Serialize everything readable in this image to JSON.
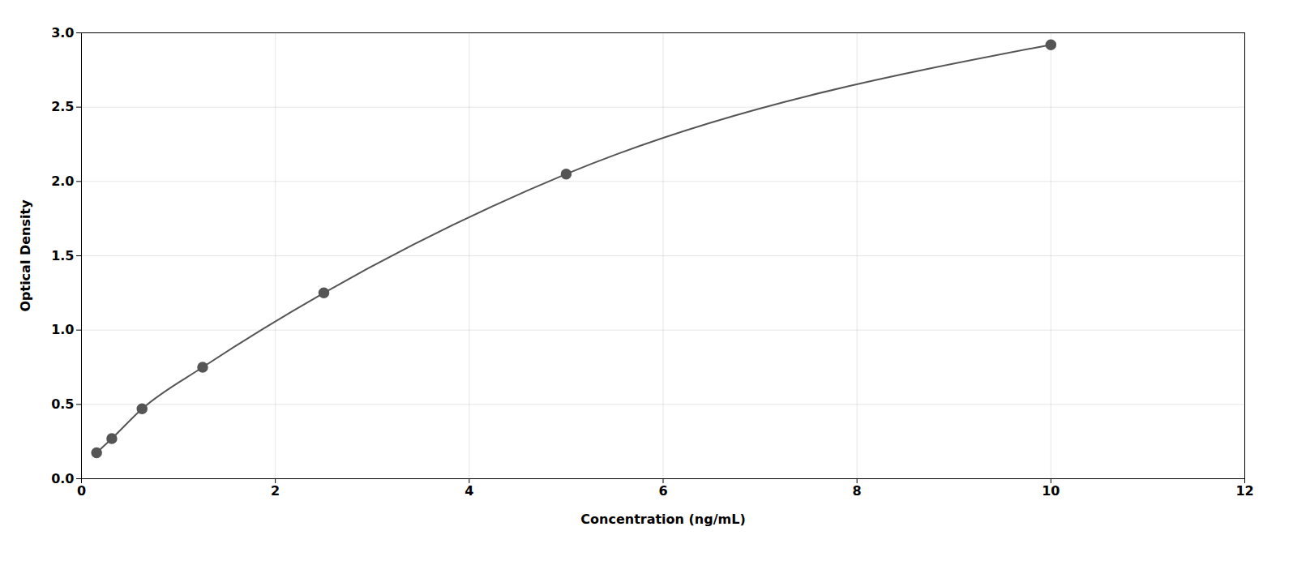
{
  "chart_data": {
    "type": "line",
    "x": [
      0.156,
      0.313,
      0.625,
      1.25,
      2.5,
      5.0,
      10.0
    ],
    "values": [
      0.175,
      0.27,
      0.47,
      0.75,
      1.25,
      2.05,
      2.92
    ],
    "color": "#555555",
    "marker": "circle",
    "xlabel": "Concentration (ng/mL)",
    "ylabel": "Optical Density",
    "xlim": [
      0,
      12
    ],
    "ylim": [
      0,
      3.0
    ],
    "xticks": [
      0,
      2,
      4,
      6,
      8,
      10,
      12
    ],
    "yticks": [
      {
        "value": 0,
        "label": "0.0"
      },
      0.5,
      {
        "value": 1.0,
        "label": "1.0"
      },
      1.5,
      {
        "value": 2.0,
        "label": "2.0"
      },
      2.5,
      {
        "value": 3.0,
        "label": "3.0"
      }
    ],
    "grid": true
  }
}
